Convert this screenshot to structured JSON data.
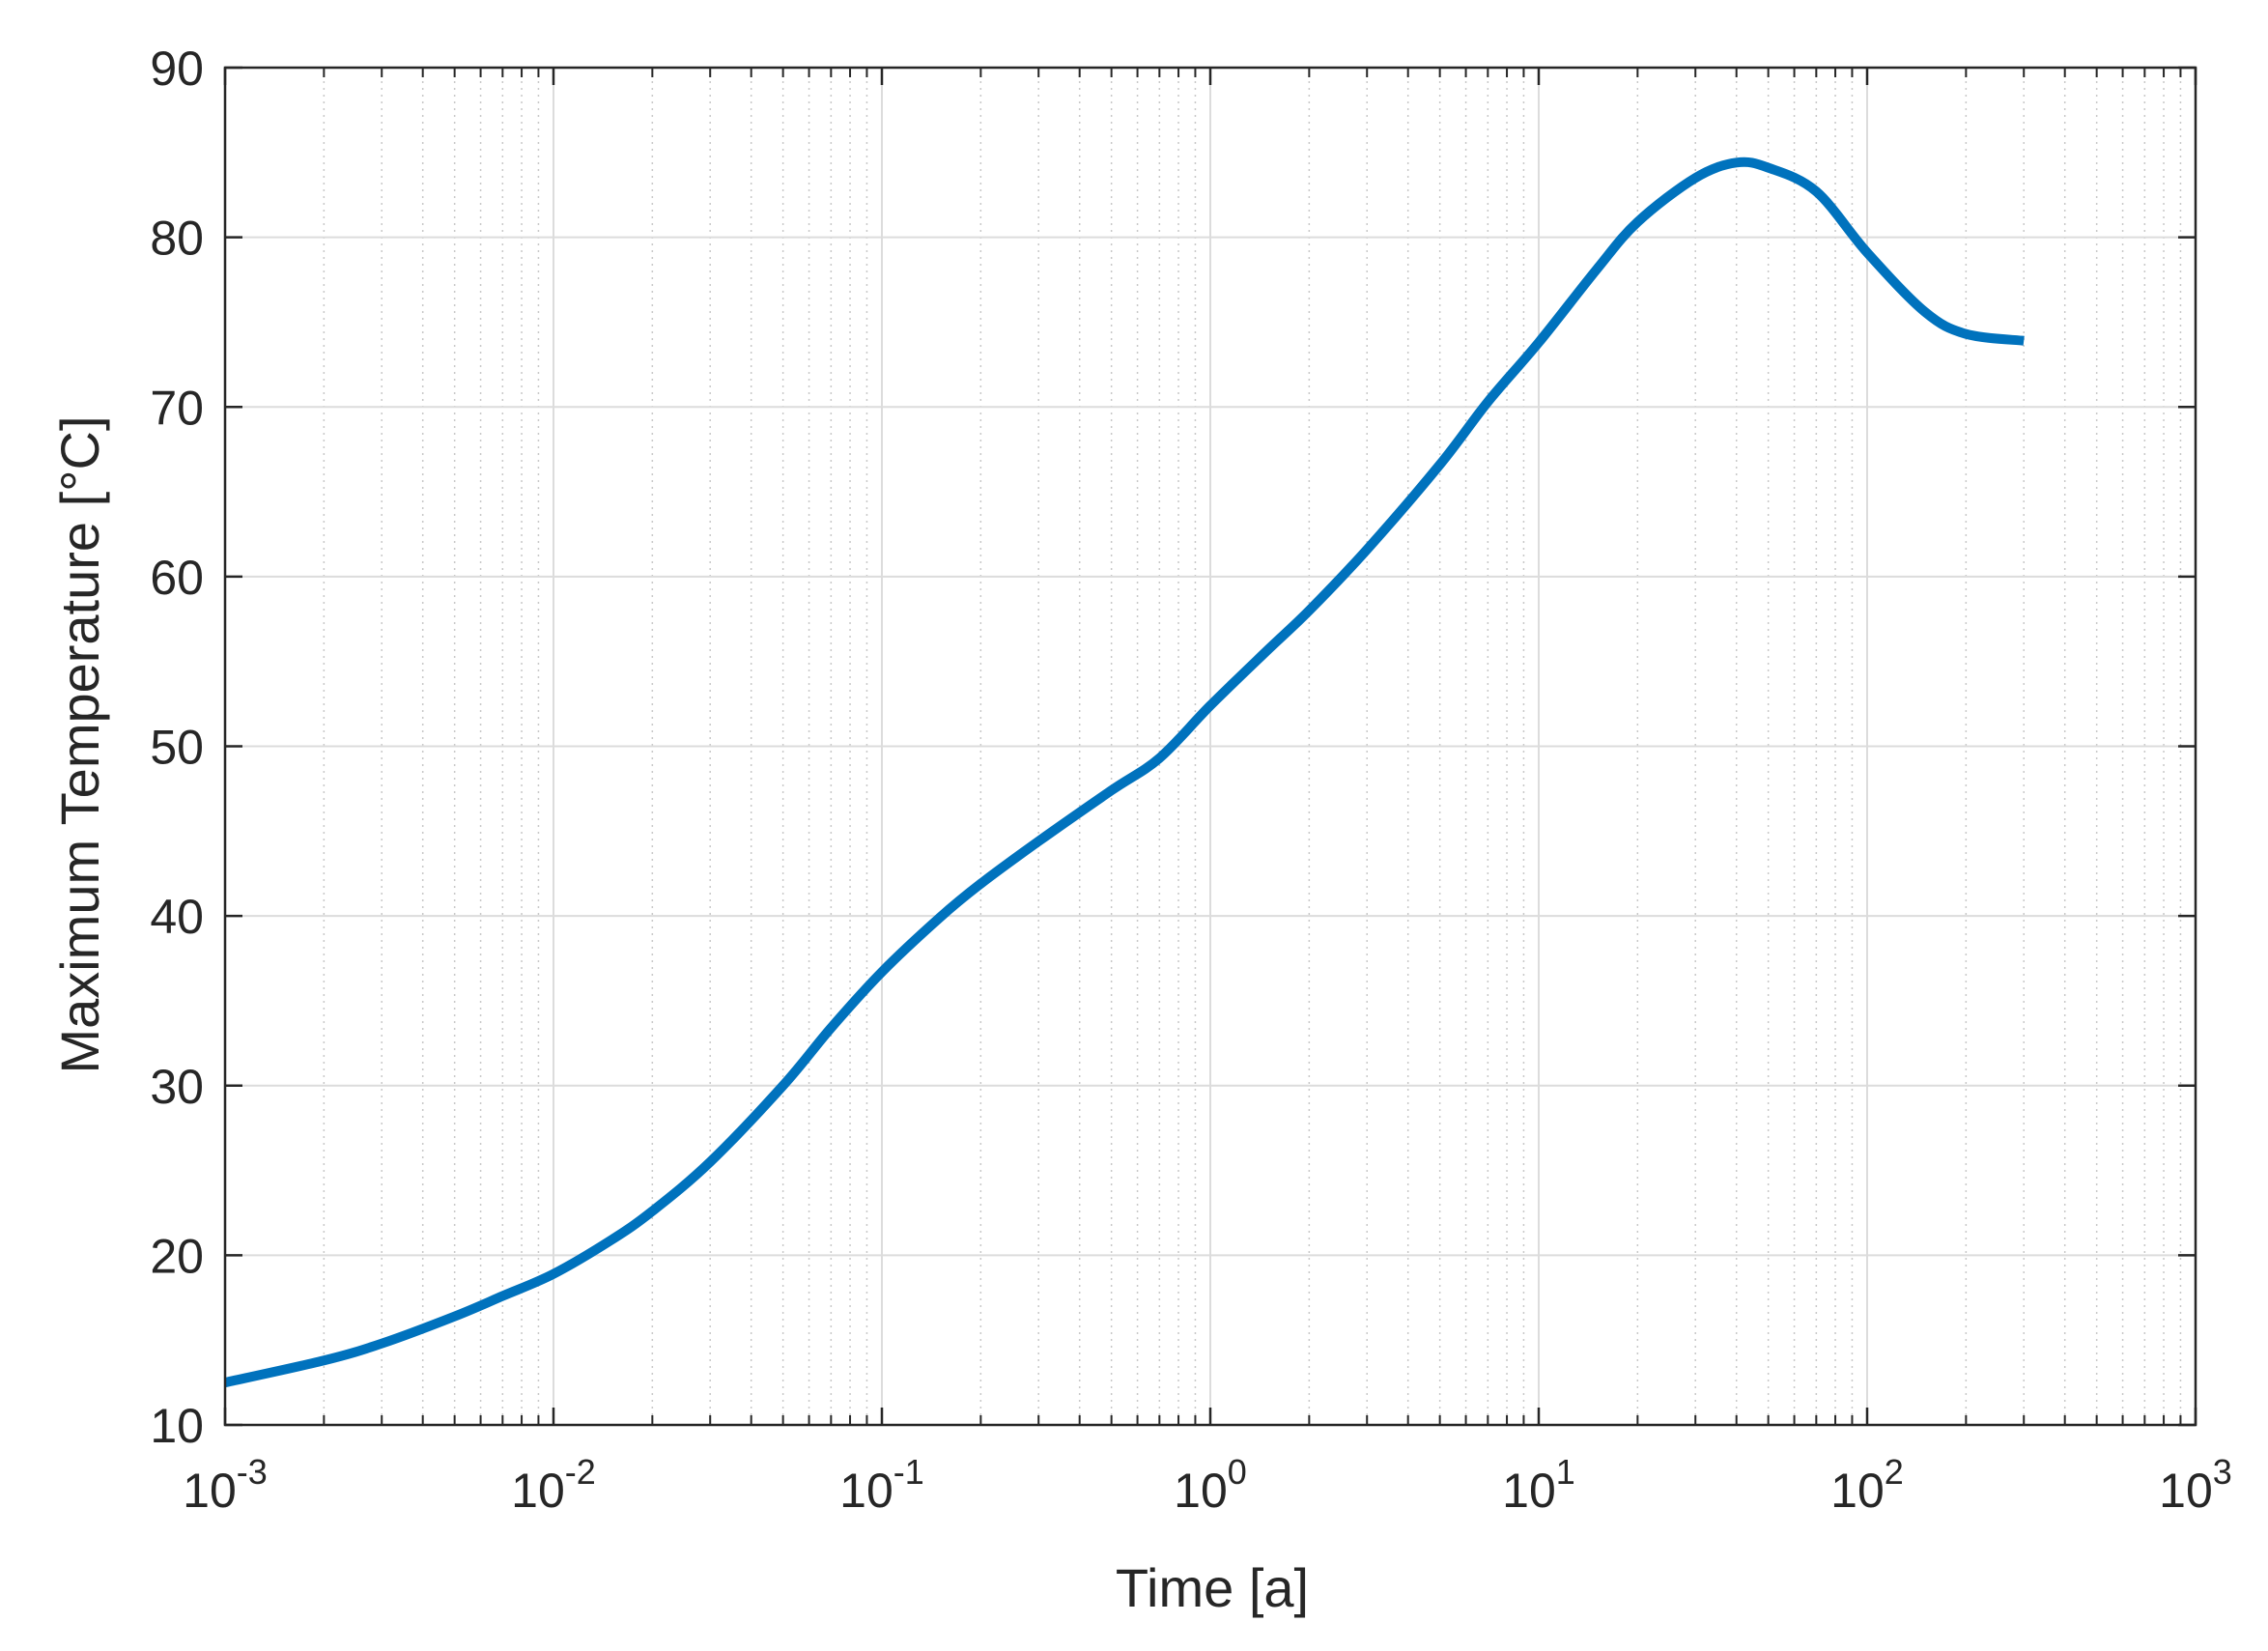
{
  "chart_data": {
    "type": "line",
    "title": "",
    "xlabel": "Time [a]",
    "ylabel": "Maximum Temperature [°C]",
    "xscale": "log",
    "xlim": [
      0.001,
      1000
    ],
    "ylim": [
      10,
      90
    ],
    "grid": true,
    "minor_grid": true,
    "legend": "none",
    "xtick_labels": [
      {
        "base": "10",
        "exp": "-3"
      },
      {
        "base": "10",
        "exp": "-2"
      },
      {
        "base": "10",
        "exp": "-1"
      },
      {
        "base": "10",
        "exp": "0"
      },
      {
        "base": "10",
        "exp": "1"
      },
      {
        "base": "10",
        "exp": "2"
      },
      {
        "base": "10",
        "exp": "3"
      }
    ],
    "yticks": [
      "10",
      "20",
      "30",
      "40",
      "50",
      "60",
      "70",
      "80",
      "90"
    ],
    "colors": {
      "line": "#0072BD",
      "axis": "#262626",
      "grid": "#dcdcdc",
      "minor_grid": "#c8c8c8"
    },
    "series": [
      {
        "x": [
          0.001,
          0.002,
          0.003,
          0.005,
          0.007,
          0.01,
          0.015,
          0.02,
          0.03,
          0.05,
          0.07,
          0.1,
          0.15,
          0.2,
          0.3,
          0.5,
          0.7,
          1,
          1.5,
          2,
          3,
          5,
          7,
          10,
          15,
          20,
          30,
          40,
          50,
          70,
          100,
          150,
          200,
          300
        ],
        "y": [
          12.5,
          13.8,
          14.8,
          16.4,
          17.6,
          18.9,
          20.9,
          22.6,
          25.5,
          30.0,
          33.4,
          36.7,
          39.9,
          41.9,
          44.4,
          47.4,
          49.3,
          52.4,
          55.7,
          58.0,
          61.6,
          66.6,
          70.3,
          73.8,
          78.1,
          80.9,
          83.5,
          84.4,
          84.1,
          82.7,
          79.1,
          75.6,
          74.3,
          73.9
        ]
      }
    ]
  }
}
